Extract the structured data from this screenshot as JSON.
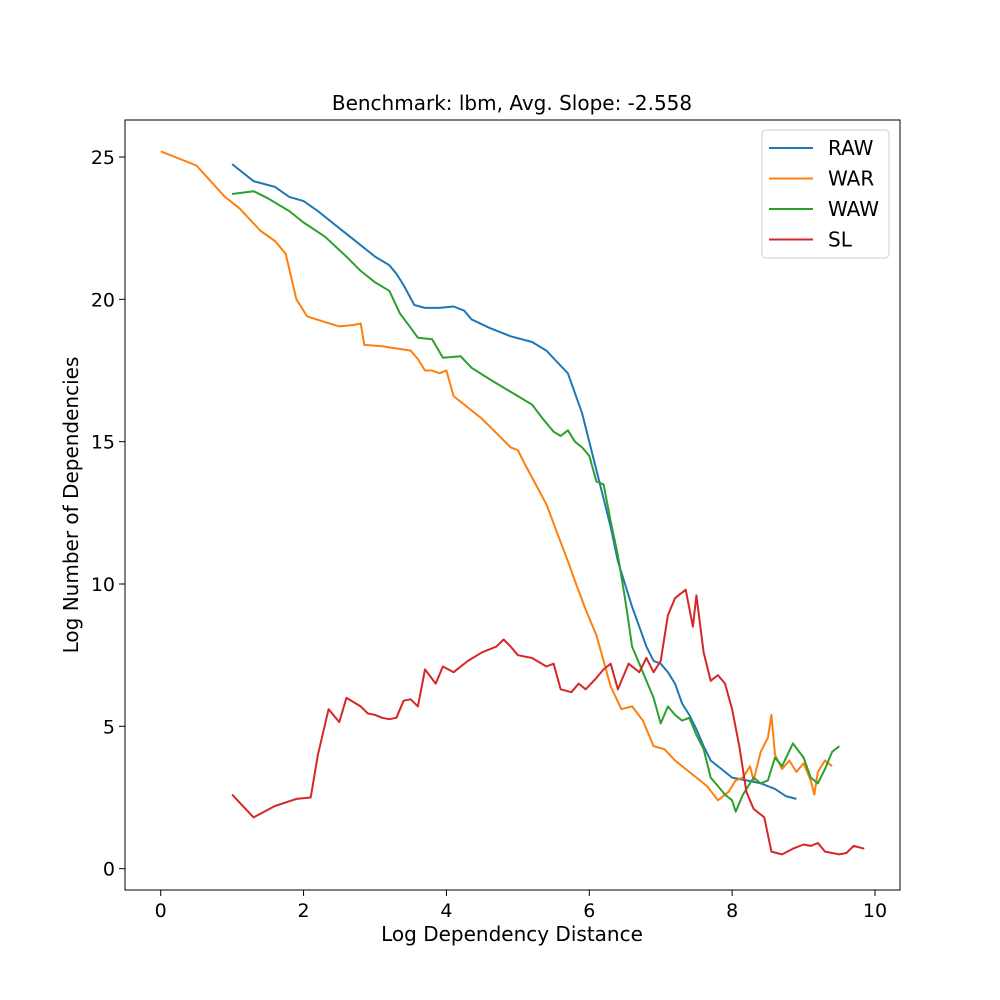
{
  "chart_data": {
    "type": "line",
    "title": "Benchmark: lbm, Avg. Slope: -2.558",
    "xlabel": "Log Dependency Distance",
    "ylabel": "Log Number of Dependencies",
    "xlim": [
      -0.5,
      10.35
    ],
    "ylim": [
      -0.75,
      26.3
    ],
    "xticks": [
      0,
      2,
      4,
      6,
      8,
      10
    ],
    "yticks": [
      0,
      5,
      10,
      15,
      20,
      25
    ],
    "grid": false,
    "legend_position": "top-right",
    "series": [
      {
        "name": "RAW",
        "color": "#1f77b4",
        "points": [
          [
            1.0,
            24.75
          ],
          [
            1.3,
            24.15
          ],
          [
            1.6,
            23.95
          ],
          [
            1.8,
            23.6
          ],
          [
            2.0,
            23.45
          ],
          [
            2.2,
            23.1
          ],
          [
            2.5,
            22.5
          ],
          [
            2.8,
            21.9
          ],
          [
            3.0,
            21.5
          ],
          [
            3.2,
            21.2
          ],
          [
            3.3,
            20.9
          ],
          [
            3.4,
            20.5
          ],
          [
            3.55,
            19.8
          ],
          [
            3.7,
            19.7
          ],
          [
            3.9,
            19.7
          ],
          [
            4.1,
            19.75
          ],
          [
            4.25,
            19.6
          ],
          [
            4.35,
            19.3
          ],
          [
            4.6,
            19.0
          ],
          [
            4.9,
            18.7
          ],
          [
            5.2,
            18.5
          ],
          [
            5.4,
            18.2
          ],
          [
            5.55,
            17.8
          ],
          [
            5.7,
            17.4
          ],
          [
            5.8,
            16.7
          ],
          [
            5.9,
            16.0
          ],
          [
            6.0,
            15.0
          ],
          [
            6.1,
            14.0
          ],
          [
            6.2,
            13.0
          ],
          [
            6.3,
            12.0
          ],
          [
            6.4,
            10.8
          ],
          [
            6.5,
            10.0
          ],
          [
            6.6,
            9.2
          ],
          [
            6.7,
            8.5
          ],
          [
            6.8,
            7.8
          ],
          [
            6.9,
            7.3
          ],
          [
            7.0,
            7.2
          ],
          [
            7.1,
            6.9
          ],
          [
            7.2,
            6.5
          ],
          [
            7.3,
            5.8
          ],
          [
            7.4,
            5.4
          ],
          [
            7.5,
            4.9
          ],
          [
            7.6,
            4.3
          ],
          [
            7.7,
            3.8
          ],
          [
            7.85,
            3.5
          ],
          [
            8.0,
            3.2
          ],
          [
            8.2,
            3.1
          ],
          [
            8.4,
            3.0
          ],
          [
            8.6,
            2.8
          ],
          [
            8.75,
            2.55
          ],
          [
            8.9,
            2.45
          ]
        ]
      },
      {
        "name": "WAR",
        "color": "#ff7f0e",
        "points": [
          [
            0.0,
            25.2
          ],
          [
            0.5,
            24.7
          ],
          [
            0.9,
            23.6
          ],
          [
            1.1,
            23.2
          ],
          [
            1.4,
            22.4
          ],
          [
            1.6,
            22.05
          ],
          [
            1.75,
            21.6
          ],
          [
            1.9,
            20.0
          ],
          [
            2.05,
            19.4
          ],
          [
            2.3,
            19.2
          ],
          [
            2.5,
            19.05
          ],
          [
            2.7,
            19.1
          ],
          [
            2.8,
            19.15
          ],
          [
            2.85,
            18.4
          ],
          [
            3.1,
            18.35
          ],
          [
            3.5,
            18.2
          ],
          [
            3.6,
            17.9
          ],
          [
            3.7,
            17.5
          ],
          [
            3.8,
            17.5
          ],
          [
            3.9,
            17.4
          ],
          [
            4.0,
            17.5
          ],
          [
            4.1,
            16.6
          ],
          [
            4.3,
            16.2
          ],
          [
            4.5,
            15.8
          ],
          [
            4.7,
            15.3
          ],
          [
            4.9,
            14.8
          ],
          [
            5.0,
            14.7
          ],
          [
            5.1,
            14.2
          ],
          [
            5.25,
            13.5
          ],
          [
            5.4,
            12.8
          ],
          [
            5.55,
            11.8
          ],
          [
            5.7,
            10.8
          ],
          [
            5.8,
            10.1
          ],
          [
            5.95,
            9.1
          ],
          [
            6.1,
            8.2
          ],
          [
            6.2,
            7.3
          ],
          [
            6.3,
            6.4
          ],
          [
            6.45,
            5.6
          ],
          [
            6.6,
            5.7
          ],
          [
            6.75,
            5.2
          ],
          [
            6.9,
            4.3
          ],
          [
            7.05,
            4.2
          ],
          [
            7.2,
            3.8
          ],
          [
            7.35,
            3.5
          ],
          [
            7.5,
            3.2
          ],
          [
            7.65,
            2.9
          ],
          [
            7.8,
            2.4
          ],
          [
            7.95,
            2.7
          ],
          [
            8.05,
            3.1
          ],
          [
            8.15,
            3.2
          ],
          [
            8.25,
            3.6
          ],
          [
            8.3,
            3.1
          ],
          [
            8.4,
            4.1
          ],
          [
            8.5,
            4.6
          ],
          [
            8.55,
            5.4
          ],
          [
            8.6,
            4.0
          ],
          [
            8.7,
            3.5
          ],
          [
            8.8,
            3.8
          ],
          [
            8.9,
            3.4
          ],
          [
            9.0,
            3.7
          ],
          [
            9.1,
            3.1
          ],
          [
            9.15,
            2.6
          ],
          [
            9.2,
            3.4
          ],
          [
            9.3,
            3.8
          ],
          [
            9.4,
            3.6
          ]
        ]
      },
      {
        "name": "WAW",
        "color": "#2ca02c",
        "points": [
          [
            1.0,
            23.7
          ],
          [
            1.3,
            23.8
          ],
          [
            1.5,
            23.55
          ],
          [
            1.8,
            23.1
          ],
          [
            2.0,
            22.7
          ],
          [
            2.3,
            22.2
          ],
          [
            2.6,
            21.5
          ],
          [
            2.8,
            21.0
          ],
          [
            3.0,
            20.6
          ],
          [
            3.2,
            20.3
          ],
          [
            3.35,
            19.5
          ],
          [
            3.5,
            19.0
          ],
          [
            3.6,
            18.65
          ],
          [
            3.8,
            18.6
          ],
          [
            3.95,
            17.95
          ],
          [
            4.2,
            18.0
          ],
          [
            4.35,
            17.6
          ],
          [
            4.6,
            17.2
          ],
          [
            4.8,
            16.9
          ],
          [
            5.0,
            16.6
          ],
          [
            5.2,
            16.3
          ],
          [
            5.35,
            15.8
          ],
          [
            5.5,
            15.35
          ],
          [
            5.6,
            15.2
          ],
          [
            5.7,
            15.4
          ],
          [
            5.8,
            15.0
          ],
          [
            5.9,
            14.8
          ],
          [
            6.0,
            14.5
          ],
          [
            6.1,
            13.6
          ],
          [
            6.2,
            13.5
          ],
          [
            6.3,
            12.2
          ],
          [
            6.4,
            11.0
          ],
          [
            6.5,
            9.5
          ],
          [
            6.6,
            7.8
          ],
          [
            6.7,
            7.2
          ],
          [
            6.8,
            6.6
          ],
          [
            6.9,
            6.0
          ],
          [
            7.0,
            5.1
          ],
          [
            7.1,
            5.7
          ],
          [
            7.2,
            5.4
          ],
          [
            7.3,
            5.2
          ],
          [
            7.4,
            5.3
          ],
          [
            7.5,
            4.7
          ],
          [
            7.6,
            4.2
          ],
          [
            7.7,
            3.2
          ],
          [
            7.8,
            2.9
          ],
          [
            7.9,
            2.6
          ],
          [
            8.0,
            2.4
          ],
          [
            8.05,
            2.0
          ],
          [
            8.15,
            2.6
          ],
          [
            8.3,
            3.2
          ],
          [
            8.4,
            3.0
          ],
          [
            8.5,
            3.1
          ],
          [
            8.6,
            3.9
          ],
          [
            8.7,
            3.6
          ],
          [
            8.85,
            4.4
          ],
          [
            9.0,
            3.9
          ],
          [
            9.1,
            3.2
          ],
          [
            9.2,
            3.0
          ],
          [
            9.3,
            3.5
          ],
          [
            9.4,
            4.1
          ],
          [
            9.5,
            4.3
          ]
        ]
      },
      {
        "name": "SL",
        "color": "#d62728",
        "points": [
          [
            1.0,
            2.6
          ],
          [
            1.3,
            1.8
          ],
          [
            1.6,
            2.2
          ],
          [
            1.9,
            2.45
          ],
          [
            2.1,
            2.5
          ],
          [
            2.2,
            4.0
          ],
          [
            2.35,
            5.6
          ],
          [
            2.5,
            5.15
          ],
          [
            2.6,
            6.0
          ],
          [
            2.8,
            5.7
          ],
          [
            2.9,
            5.45
          ],
          [
            3.0,
            5.4
          ],
          [
            3.1,
            5.3
          ],
          [
            3.2,
            5.25
          ],
          [
            3.3,
            5.3
          ],
          [
            3.4,
            5.9
          ],
          [
            3.5,
            5.95
          ],
          [
            3.6,
            5.7
          ],
          [
            3.7,
            7.0
          ],
          [
            3.85,
            6.5
          ],
          [
            3.95,
            7.1
          ],
          [
            4.1,
            6.9
          ],
          [
            4.3,
            7.3
          ],
          [
            4.5,
            7.6
          ],
          [
            4.7,
            7.8
          ],
          [
            4.8,
            8.05
          ],
          [
            4.9,
            7.8
          ],
          [
            5.0,
            7.5
          ],
          [
            5.2,
            7.4
          ],
          [
            5.4,
            7.1
          ],
          [
            5.5,
            7.2
          ],
          [
            5.6,
            6.3
          ],
          [
            5.75,
            6.2
          ],
          [
            5.85,
            6.5
          ],
          [
            5.95,
            6.3
          ],
          [
            6.1,
            6.7
          ],
          [
            6.2,
            7.0
          ],
          [
            6.3,
            7.2
          ],
          [
            6.4,
            6.3
          ],
          [
            6.55,
            7.2
          ],
          [
            6.7,
            6.9
          ],
          [
            6.8,
            7.4
          ],
          [
            6.9,
            6.9
          ],
          [
            7.0,
            7.3
          ],
          [
            7.1,
            8.9
          ],
          [
            7.2,
            9.5
          ],
          [
            7.35,
            9.8
          ],
          [
            7.45,
            8.5
          ],
          [
            7.5,
            9.6
          ],
          [
            7.6,
            7.6
          ],
          [
            7.7,
            6.6
          ],
          [
            7.8,
            6.8
          ],
          [
            7.9,
            6.5
          ],
          [
            8.0,
            5.6
          ],
          [
            8.1,
            4.3
          ],
          [
            8.2,
            2.7
          ],
          [
            8.3,
            2.1
          ],
          [
            8.45,
            1.8
          ],
          [
            8.55,
            0.6
          ],
          [
            8.7,
            0.5
          ],
          [
            8.85,
            0.7
          ],
          [
            9.0,
            0.85
          ],
          [
            9.1,
            0.8
          ],
          [
            9.2,
            0.9
          ],
          [
            9.3,
            0.6
          ],
          [
            9.5,
            0.5
          ],
          [
            9.6,
            0.55
          ],
          [
            9.7,
            0.8
          ],
          [
            9.85,
            0.7
          ]
        ]
      }
    ]
  }
}
